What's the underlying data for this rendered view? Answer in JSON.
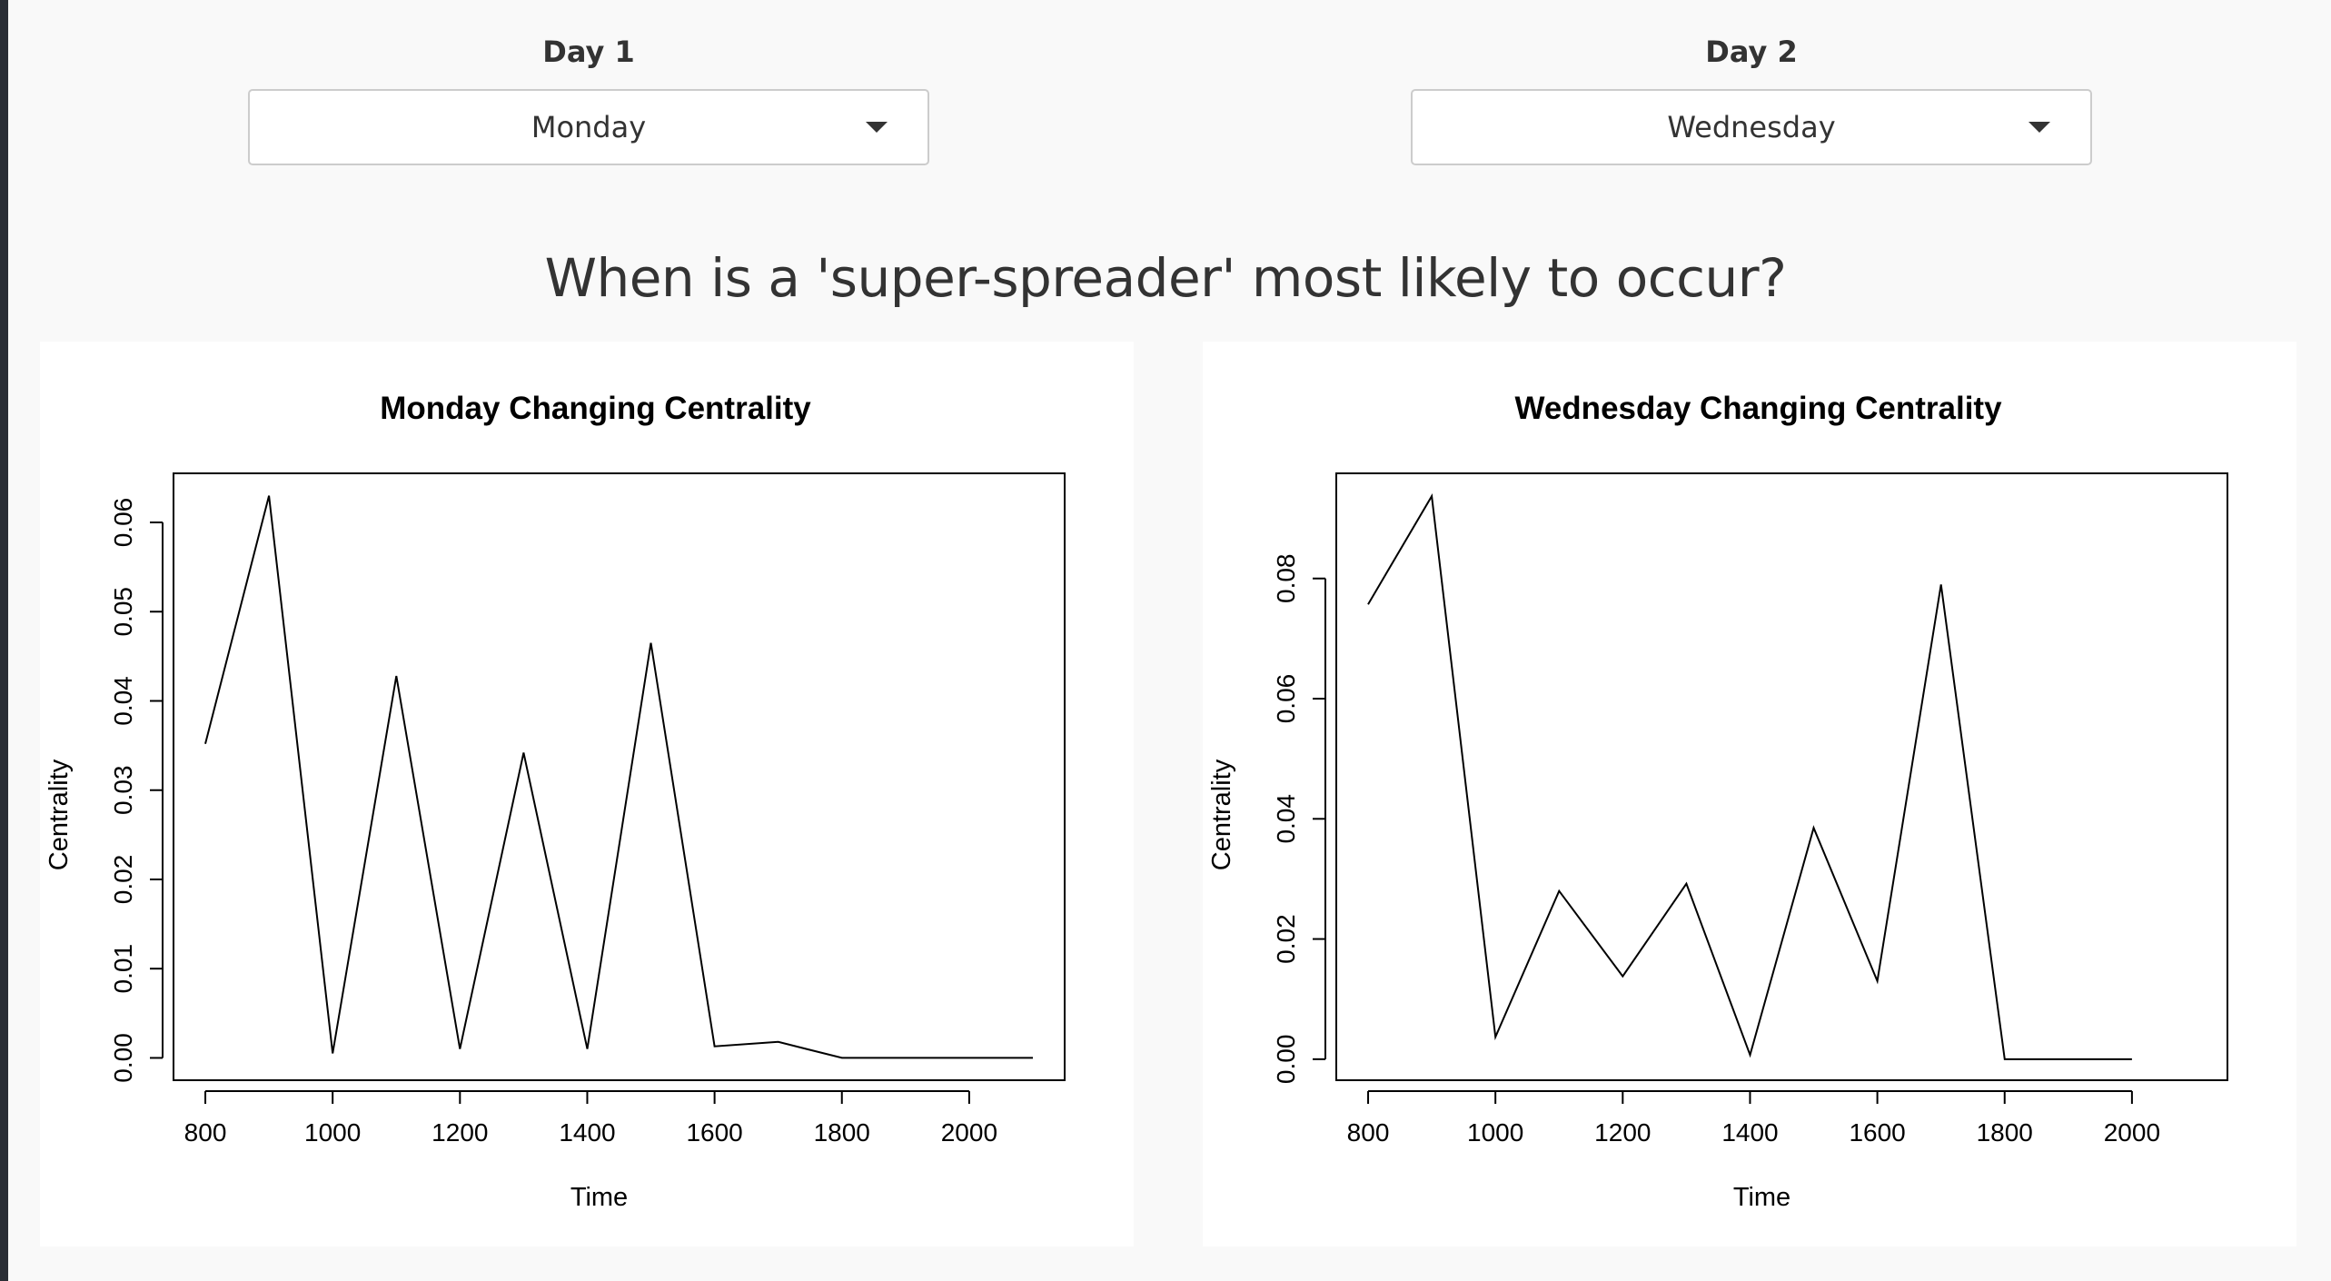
{
  "selectors": [
    {
      "label": "Day 1",
      "selected": "Monday"
    },
    {
      "label": "Day 2",
      "selected": "Wednesday"
    }
  ],
  "heading": "When is a 'super-spreader' most likely to occur?",
  "colors": {
    "page_bg": "#f9f9f9",
    "panel_bg": "#ffffff",
    "line": "#000000",
    "text": "#333333"
  },
  "icons": {
    "dropdown": "caret-down-icon"
  },
  "chart_data": [
    {
      "type": "line",
      "title": "Monday Changing Centrality",
      "xlabel": "Time",
      "ylabel": "Centrality",
      "xlim": [
        750,
        2150
      ],
      "ylim": [
        -0.0025,
        0.0655
      ],
      "x_ticks": [
        800,
        1000,
        1200,
        1400,
        1600,
        1800,
        2000
      ],
      "y_ticks": [
        0.0,
        0.01,
        0.02,
        0.03,
        0.04,
        0.05,
        0.06
      ],
      "x_tick_labels": [
        "800",
        "1000",
        "1200",
        "1400",
        "1600",
        "1800",
        "2000"
      ],
      "y_tick_labels": [
        "0.00",
        "0.01",
        "0.02",
        "0.03",
        "0.04",
        "0.05",
        "0.06"
      ],
      "x": [
        800,
        900,
        1000,
        1100,
        1200,
        1300,
        1400,
        1500,
        1600,
        1700,
        1800,
        1900,
        2000,
        2100
      ],
      "y": [
        0.0352,
        0.063,
        0.0005,
        0.0428,
        0.001,
        0.0342,
        0.001,
        0.0465,
        0.0013,
        0.0018,
        0.0,
        0.0,
        0.0,
        0.0
      ],
      "grid": false,
      "legend": "none"
    },
    {
      "type": "line",
      "title": "Wednesday Changing Centrality",
      "xlabel": "Time",
      "ylabel": "Centrality",
      "xlim": [
        750,
        2150
      ],
      "ylim": [
        -0.0035,
        0.0975
      ],
      "x_ticks": [
        800,
        1000,
        1200,
        1400,
        1600,
        1800,
        2000
      ],
      "y_ticks": [
        0.0,
        0.02,
        0.04,
        0.06,
        0.08
      ],
      "x_tick_labels": [
        "800",
        "1000",
        "1200",
        "1400",
        "1600",
        "1800",
        "2000"
      ],
      "y_tick_labels": [
        "0.00",
        "0.02",
        "0.04",
        "0.06",
        "0.08"
      ],
      "x": [
        800,
        900,
        1000,
        1100,
        1200,
        1300,
        1400,
        1500,
        1600,
        1700,
        1800,
        1900,
        2000
      ],
      "y": [
        0.0757,
        0.0937,
        0.0037,
        0.028,
        0.0138,
        0.0292,
        0.0007,
        0.0385,
        0.013,
        0.079,
        0.0,
        0.0,
        0.0
      ],
      "grid": false,
      "legend": "none"
    }
  ]
}
